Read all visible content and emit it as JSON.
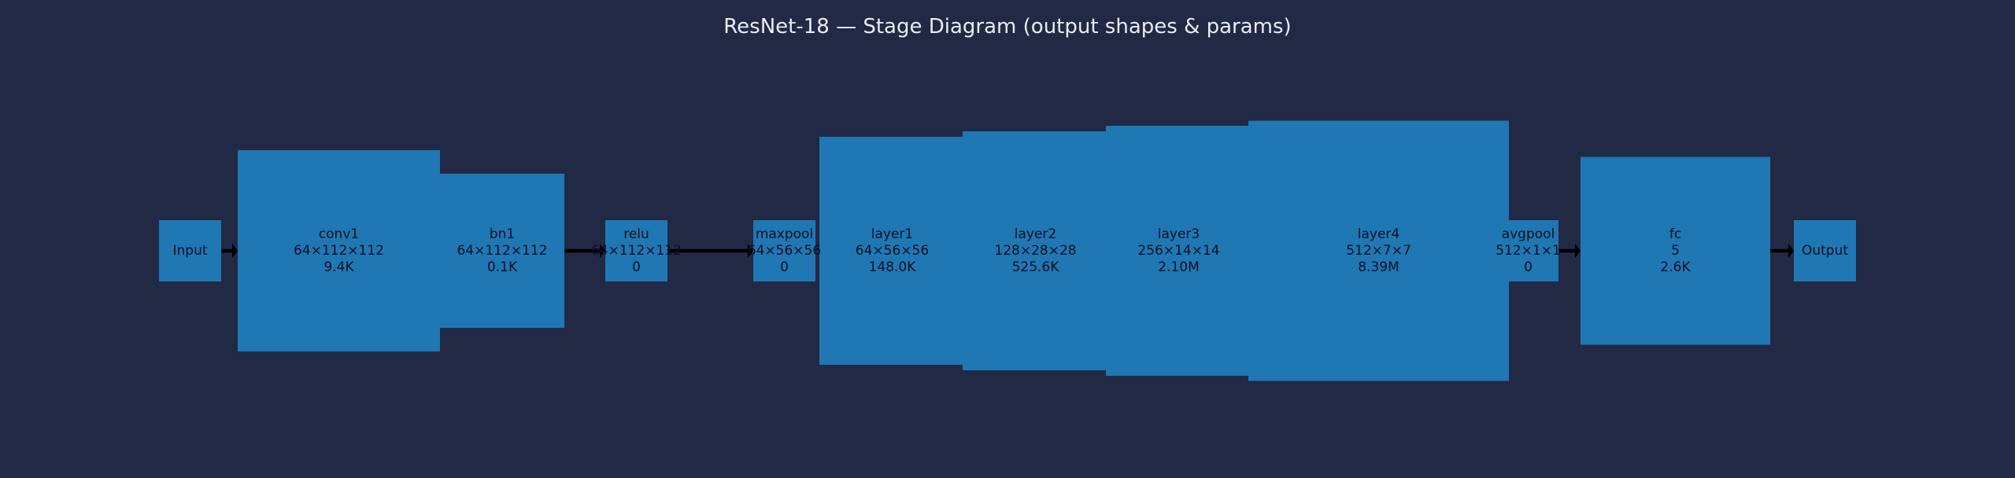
{
  "title": "ResNet-18 — Stage Diagram (output shapes & params)",
  "colors": {
    "background": "#212945",
    "block_fill": "#1f77b4",
    "edge": "#000000",
    "title_text": "#e9ecf5",
    "label_text": "#0b1020"
  },
  "blocks": [
    {
      "id": "input",
      "name": "Input"
    },
    {
      "id": "conv1",
      "name": "conv1",
      "shape": "64×112×112",
      "params": "9.4K"
    },
    {
      "id": "bn1",
      "name": "bn1",
      "shape": "64×112×112",
      "params": "0.1K"
    },
    {
      "id": "relu",
      "name": "relu",
      "shape": "64×112×112",
      "params": "0"
    },
    {
      "id": "maxpool",
      "name": "maxpool",
      "shape": "64×56×56",
      "params": "0"
    },
    {
      "id": "layer1",
      "name": "layer1",
      "shape": "64×56×56",
      "params": "148.0K"
    },
    {
      "id": "layer2",
      "name": "layer2",
      "shape": "128×28×28",
      "params": "525.6K"
    },
    {
      "id": "layer3",
      "name": "layer3",
      "shape": "256×14×14",
      "params": "2.10M"
    },
    {
      "id": "layer4",
      "name": "layer4",
      "shape": "512×7×7",
      "params": "8.39M"
    },
    {
      "id": "avgpool",
      "name": "avgpool",
      "shape": "512×1×1",
      "params": "0"
    },
    {
      "id": "fc",
      "name": "fc",
      "shape": "5",
      "params": "2.6K"
    },
    {
      "id": "output",
      "name": "Output"
    }
  ],
  "edges": [
    [
      "input",
      "conv1"
    ],
    [
      "bn1",
      "relu"
    ],
    [
      "relu",
      "maxpool"
    ],
    [
      "avgpool",
      "fc"
    ],
    [
      "fc",
      "output"
    ]
  ]
}
